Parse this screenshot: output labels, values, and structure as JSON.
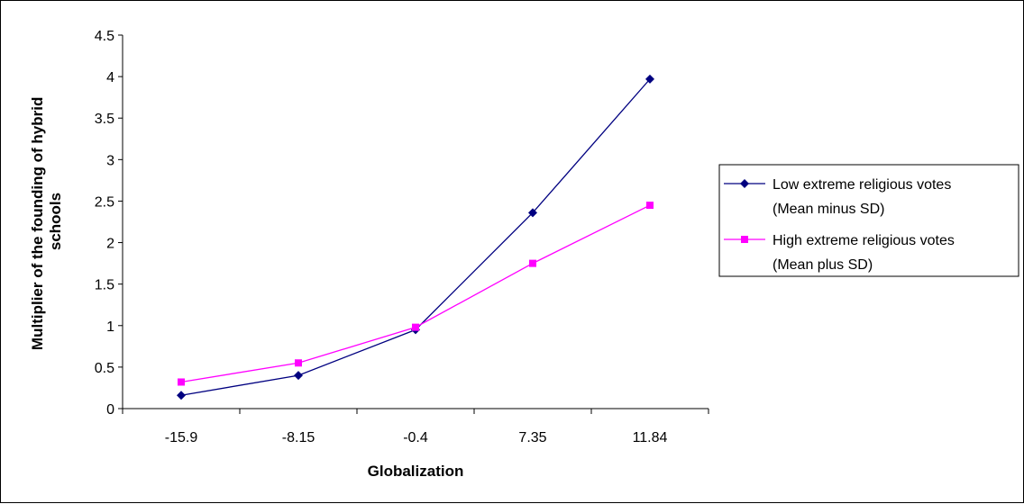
{
  "chart_data": {
    "type": "line",
    "title": "",
    "xlabel": "Globalization",
    "ylabel_lines": [
      "Multiplier of the founding of hybrid",
      "schools"
    ],
    "categories": [
      "-15.9",
      "-8.15",
      "-0.4",
      "7.35",
      "11.84"
    ],
    "ylim": [
      0,
      4.5
    ],
    "yticks": [
      "0",
      "0.5",
      "1",
      "1.5",
      "2",
      "2.5",
      "3",
      "3.5",
      "4",
      "4.5"
    ],
    "grid": false,
    "legend_position": "right",
    "series": [
      {
        "name_lines": [
          "Low extreme religious votes",
          "(Mean minus SD)"
        ],
        "values": [
          0.16,
          0.4,
          0.95,
          2.36,
          3.97
        ],
        "color": "#000080",
        "marker": "diamond"
      },
      {
        "name_lines": [
          "High extreme religious votes",
          "(Mean plus SD)"
        ],
        "values": [
          0.32,
          0.55,
          0.98,
          1.75,
          2.45
        ],
        "color": "#ff00ff",
        "marker": "square"
      }
    ]
  }
}
